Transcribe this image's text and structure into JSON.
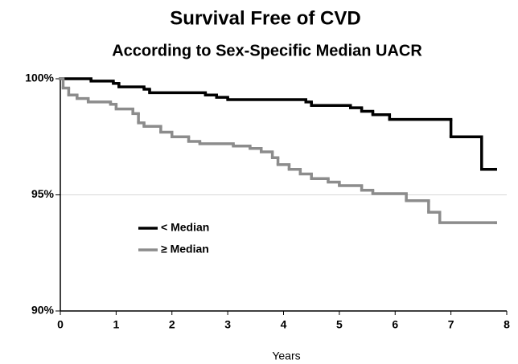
{
  "chart_data": {
    "type": "step",
    "title": "Survival Free of CVD",
    "subtitle": "According to Sex-Specific Median UACR",
    "x_label": "Years",
    "xlim": [
      0,
      8
    ],
    "xticks": [
      0,
      1,
      2,
      3,
      4,
      5,
      6,
      7,
      8
    ],
    "ylim": [
      90,
      100
    ],
    "yticks": [
      {
        "value": 90,
        "label": "90%"
      },
      {
        "value": 95,
        "label": "95%"
      },
      {
        "value": 100,
        "label": "100%"
      }
    ],
    "grid_values": [
      95
    ],
    "series": [
      {
        "name": "< Median",
        "color": "#000000",
        "x": [
          0,
          0.55,
          0.95,
          1.05,
          1.5,
          1.6,
          2.6,
          2.8,
          3.0,
          4.4,
          4.5,
          5.2,
          5.4,
          5.6,
          5.9,
          7.0,
          7.55,
          7.8
        ],
        "values": [
          100,
          99.9,
          99.8,
          99.65,
          99.55,
          99.4,
          99.3,
          99.2,
          99.1,
          99.0,
          98.85,
          98.75,
          98.6,
          98.45,
          98.25,
          97.5,
          96.1,
          96.1
        ]
      },
      {
        "name": "≥ Median",
        "color": "#8c8c8c",
        "x": [
          0,
          0.05,
          0.15,
          0.3,
          0.5,
          0.9,
          1.0,
          1.3,
          1.4,
          1.5,
          1.8,
          2.0,
          2.3,
          2.5,
          3.1,
          3.4,
          3.6,
          3.8,
          3.9,
          4.1,
          4.3,
          4.5,
          4.8,
          5.0,
          5.4,
          5.6,
          6.2,
          6.6,
          6.8,
          7.8
        ],
        "values": [
          100,
          99.6,
          99.3,
          99.15,
          99.0,
          98.9,
          98.7,
          98.5,
          98.1,
          97.95,
          97.7,
          97.5,
          97.3,
          97.2,
          97.1,
          97.0,
          96.85,
          96.6,
          96.3,
          96.1,
          95.9,
          95.7,
          95.55,
          95.4,
          95.2,
          95.05,
          94.75,
          94.25,
          93.8,
          93.8
        ]
      }
    ]
  }
}
